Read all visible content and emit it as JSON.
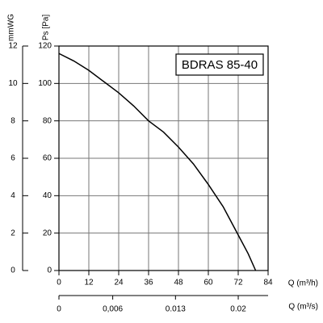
{
  "chart_data": {
    "type": "line",
    "title": "BDRAS 85-40",
    "x_label": "Q (m³/h)",
    "y_label": "Ps [Pa]",
    "y2_label": "mmWG",
    "x2_label": "Q (m³/s)",
    "x": [
      0,
      6,
      12,
      18,
      24,
      30,
      36,
      42,
      48,
      54,
      60,
      66,
      72,
      76,
      79
    ],
    "series": [
      {
        "name": "BDRAS 85-40",
        "color": "#000000",
        "values": [
          116,
          112,
          107,
          101,
          95,
          88,
          80,
          74,
          66,
          57,
          46,
          34,
          19,
          9,
          0
        ]
      }
    ],
    "xlim": [
      0,
      84
    ],
    "xticks": [
      0,
      12,
      24,
      36,
      48,
      60,
      72,
      84
    ],
    "ylim": [
      0,
      120
    ],
    "yticks": [
      0,
      20,
      40,
      60,
      80,
      100,
      120
    ],
    "y2lim": [
      0,
      12
    ],
    "y2ticks": [
      0,
      2,
      4,
      6,
      8,
      10,
      12
    ],
    "x2lim": [
      0,
      0.02333
    ],
    "x2ticks": [
      0,
      {
        "value": 0.006,
        "label": "0,006"
      },
      {
        "value": 0.013,
        "label": "0.013"
      },
      {
        "value": 0.02,
        "label": "0.02"
      }
    ],
    "grid": true
  }
}
